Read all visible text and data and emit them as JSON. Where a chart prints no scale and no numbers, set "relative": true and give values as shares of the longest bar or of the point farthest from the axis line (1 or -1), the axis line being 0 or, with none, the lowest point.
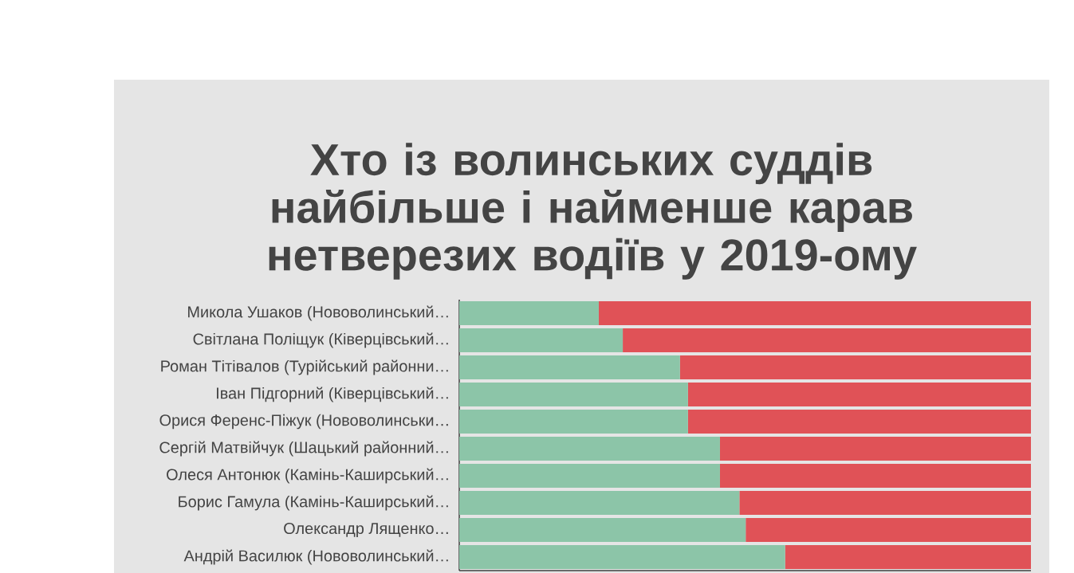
{
  "chart_data": {
    "type": "bar",
    "orientation": "horizontal",
    "stacked": true,
    "relative": true,
    "title": "Хто із волинських суддів найбільше і найменше карав нетверезих водіїв у 2019-ому",
    "categories": [
      "Микола Ушаков (Нововолинський…",
      "Світлана Поліщук (Ківерцівський…",
      "Роман Тітівалов (Турійський районни…",
      "Іван Підгорний (Ківерцівський…",
      "Орися Ференс-Піжук (Нововолинськи…",
      "Сергій Матвійчук (Шацький районний…",
      "Олеся Антонюк (Камінь-Каширський…",
      "Борис Гамула (Камінь-Каширський…",
      "Олександр Лященко…",
      "Андрій Василюк (Нововолинський…"
    ],
    "series": [
      {
        "color": "#8cc5a8",
        "values": [
          0.244,
          0.286,
          0.386,
          0.4,
          0.4,
          0.456,
          0.456,
          0.49,
          0.501,
          0.57
        ]
      },
      {
        "color": "#e05257",
        "values": [
          0.756,
          0.714,
          0.614,
          0.6,
          0.6,
          0.544,
          0.544,
          0.51,
          0.499,
          0.43
        ]
      }
    ]
  }
}
